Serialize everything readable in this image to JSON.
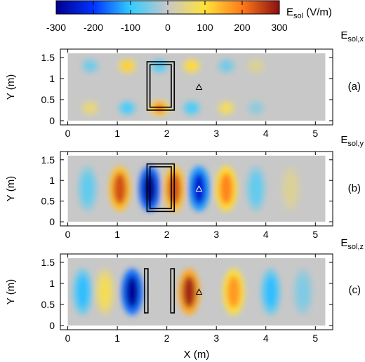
{
  "colorbar": {
    "title_main": "E",
    "title_sub": "sol",
    "title_unit": " (V/m)",
    "ticks": [
      -300,
      -200,
      -100,
      0,
      100,
      200,
      300
    ],
    "range": [
      -300,
      300
    ],
    "colors": [
      "#00008f",
      "#0033ff",
      "#33ccff",
      "#c8c8c8",
      "#ffe23a",
      "#ff7a1a",
      "#8c1010"
    ]
  },
  "chart_data": [
    {
      "type": "heatmap",
      "component_main": "E",
      "component_sub": "sol,x",
      "panel_label": "(a)",
      "xlabel": "",
      "ylabel": "Y (m)",
      "xlim": [
        -0.15,
        5.35
      ],
      "ylim": [
        -0.1,
        1.7
      ],
      "xticks": [
        0,
        1,
        2,
        3,
        4,
        5
      ],
      "yticks": [
        0,
        0.5,
        1,
        1.5
      ],
      "grid": false,
      "features": [
        {
          "x": 0.45,
          "y": 1.3,
          "value": -60
        },
        {
          "x": 0.45,
          "y": 0.3,
          "value": 60
        },
        {
          "x": 1.2,
          "y": 1.3,
          "value": 120
        },
        {
          "x": 1.2,
          "y": 0.3,
          "value": -90
        },
        {
          "x": 1.85,
          "y": 1.3,
          "value": -80
        },
        {
          "x": 1.85,
          "y": 0.3,
          "value": 200
        },
        {
          "x": 2.5,
          "y": 1.3,
          "value": 110
        },
        {
          "x": 2.5,
          "y": 0.3,
          "value": -90
        },
        {
          "x": 3.2,
          "y": 1.3,
          "value": -60
        },
        {
          "x": 3.2,
          "y": 0.3,
          "value": 80
        },
        {
          "x": 3.8,
          "y": 1.3,
          "value": 40
        },
        {
          "x": 3.8,
          "y": 0.3,
          "value": -40
        }
      ],
      "rectangles": [
        {
          "x0": 1.6,
          "x1": 2.15,
          "y0": 0.25,
          "y1": 1.4
        },
        {
          "x0": 1.66,
          "x1": 2.09,
          "y0": 0.32,
          "y1": 1.33
        }
      ],
      "marker": {
        "x": 2.65,
        "y": 0.8
      }
    },
    {
      "type": "heatmap",
      "component_main": "E",
      "component_sub": "sol,y",
      "panel_label": "(b)",
      "xlabel": "",
      "ylabel": "Y (m)",
      "xlim": [
        -0.15,
        5.35
      ],
      "ylim": [
        -0.1,
        1.7
      ],
      "xticks": [
        0,
        1,
        2,
        3,
        4,
        5
      ],
      "yticks": [
        0,
        0.5,
        1,
        1.5
      ],
      "grid": false,
      "features": [
        {
          "x": 0.4,
          "y": 0.8,
          "value": -70
        },
        {
          "x": 1.05,
          "y": 0.8,
          "value": 240
        },
        {
          "x": 1.65,
          "y": 0.8,
          "value": -300
        },
        {
          "x": 2.15,
          "y": 0.8,
          "value": 240
        },
        {
          "x": 2.65,
          "y": 0.8,
          "value": -240
        },
        {
          "x": 3.2,
          "y": 0.8,
          "value": 190
        },
        {
          "x": 3.8,
          "y": 0.8,
          "value": -70
        },
        {
          "x": 4.5,
          "y": 0.8,
          "value": 35
        }
      ],
      "rectangles": [
        {
          "x0": 1.6,
          "x1": 2.15,
          "y0": 0.25,
          "y1": 1.4
        },
        {
          "x0": 1.66,
          "x1": 2.09,
          "y0": 0.32,
          "y1": 1.33
        }
      ],
      "marker": {
        "x": 2.65,
        "y": 0.8
      }
    },
    {
      "type": "heatmap",
      "component_main": "E",
      "component_sub": "sol,z",
      "panel_label": "(c)",
      "xlabel": "X (m)",
      "ylabel": "Y (m)",
      "xlim": [
        -0.15,
        5.35
      ],
      "ylim": [
        -0.1,
        1.7
      ],
      "xticks": [
        0,
        1,
        2,
        3,
        4,
        5
      ],
      "yticks": [
        0,
        0.5,
        1,
        1.5
      ],
      "grid": false,
      "features": [
        {
          "x": 0.3,
          "y": 0.8,
          "value": -110
        },
        {
          "x": 0.75,
          "y": 0.8,
          "value": 80
        },
        {
          "x": 1.3,
          "y": 0.8,
          "value": -290
        },
        {
          "x": 2.45,
          "y": 0.8,
          "value": 280
        },
        {
          "x": 3.35,
          "y": 0.8,
          "value": 170
        },
        {
          "x": 4.1,
          "y": 0.8,
          "value": -110
        },
        {
          "x": 4.75,
          "y": 0.8,
          "value": -50
        }
      ],
      "rectangles": [
        {
          "x0": 1.55,
          "x1": 1.62,
          "y0": 0.3,
          "y1": 1.35
        },
        {
          "x0": 2.08,
          "x1": 2.15,
          "y0": 0.3,
          "y1": 1.35
        }
      ],
      "marker": {
        "x": 2.65,
        "y": 0.8
      }
    }
  ]
}
